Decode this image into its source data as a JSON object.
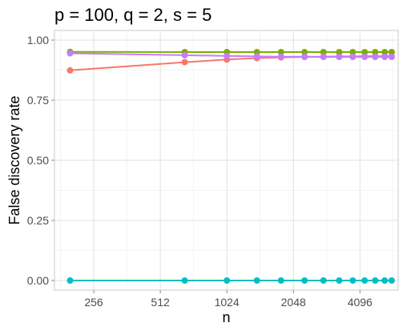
{
  "chart_data": {
    "type": "line",
    "title": "p = 100, q = 2, s = 5",
    "xlabel": "n",
    "ylabel": "False discovery rate",
    "x_scale": "log2",
    "xlim": [
      170,
      6100
    ],
    "ylim": [
      -0.04,
      1.04
    ],
    "x_ticks": [
      256,
      512,
      1024,
      2048,
      4096
    ],
    "x_tick_labels": [
      "256",
      "512",
      "1024",
      "2048",
      "4096"
    ],
    "y_ticks": [
      0,
      0.25,
      0.5,
      0.75,
      1.0
    ],
    "y_tick_labels": [
      "0.00",
      "0.25",
      "0.50",
      "0.75",
      "1.00"
    ],
    "grid": true,
    "legend": "none",
    "series": [
      {
        "color": "#f8766d",
        "x": [
          200,
          660,
          1024,
          1400,
          1800,
          2300,
          2800,
          3300,
          3800,
          4300,
          4800,
          5300,
          5700
        ],
        "values": [
          0.874,
          0.908,
          0.919,
          0.925,
          0.928,
          0.93,
          0.931,
          0.932,
          0.932,
          0.933,
          0.933,
          0.933,
          0.933
        ]
      },
      {
        "color": "#7cae00",
        "x": [
          200,
          660,
          1024,
          1400,
          1800,
          2300,
          2800,
          3300,
          3800,
          4300,
          4800,
          5300,
          5700
        ],
        "values": [
          0.951,
          0.95,
          0.95,
          0.95,
          0.95,
          0.95,
          0.95,
          0.95,
          0.95,
          0.95,
          0.95,
          0.95,
          0.95
        ]
      },
      {
        "color": "#00bfc4",
        "x": [
          200,
          660,
          1024,
          1400,
          1800,
          2300,
          2800,
          3300,
          3800,
          4300,
          4800,
          5300,
          5700
        ],
        "values": [
          0,
          0,
          0,
          0,
          0,
          0,
          0,
          0,
          0,
          0,
          0,
          0,
          0
        ]
      },
      {
        "color": "#c77cff",
        "x": [
          200,
          660,
          1024,
          1400,
          1800,
          2300,
          2800,
          3300,
          3800,
          4300,
          4800,
          5300,
          5700
        ],
        "values": [
          0.945,
          0.937,
          0.934,
          0.932,
          0.931,
          0.931,
          0.93,
          0.93,
          0.93,
          0.93,
          0.93,
          0.93,
          0.93
        ]
      }
    ]
  }
}
